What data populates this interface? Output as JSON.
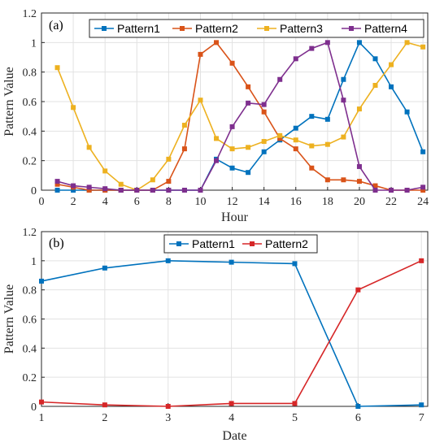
{
  "chart_data": [
    {
      "type": "line",
      "panel_label": "(a)",
      "title": "",
      "xlabel": "Hour",
      "ylabel": "Pattern Value",
      "xlim": [
        0,
        24.3
      ],
      "ylim": [
        0,
        1.2
      ],
      "xticks": [
        "0",
        "2",
        "4",
        "6",
        "8",
        "10",
        "12",
        "14",
        "16",
        "18",
        "20",
        "22",
        "24"
      ],
      "yticks": [
        "0",
        "0.2",
        "0.4",
        "0.6",
        "0.8",
        "1",
        "1.2"
      ],
      "grid": true,
      "legend": "top, horizontal",
      "x": [
        1,
        2,
        3,
        4,
        5,
        6,
        7,
        8,
        9,
        10,
        11,
        12,
        13,
        14,
        15,
        16,
        17,
        18,
        19,
        20,
        21,
        22,
        23,
        24
      ],
      "series": [
        {
          "name": "Pattern1",
          "color": "#0072BD",
          "values": [
            0,
            0,
            0,
            0,
            0,
            0,
            0,
            0,
            0,
            0,
            0.21,
            0.15,
            0.12,
            0.26,
            0.34,
            0.42,
            0.5,
            0.48,
            0.75,
            1.0,
            0.89,
            0.7,
            0.53,
            0.26
          ]
        },
        {
          "name": "Pattern2",
          "color": "#D95319",
          "values": [
            0.04,
            0.02,
            0,
            0,
            0,
            0,
            0,
            0.06,
            0.28,
            0.92,
            1.0,
            0.86,
            0.7,
            0.53,
            0.35,
            0.28,
            0.15,
            0.07,
            0.07,
            0.06,
            0.03,
            0,
            0,
            0
          ]
        },
        {
          "name": "Pattern3",
          "color": "#EDB120",
          "values": [
            0.83,
            0.56,
            0.29,
            0.13,
            0.04,
            0,
            0.07,
            0.21,
            0.44,
            0.61,
            0.35,
            0.28,
            0.29,
            0.33,
            0.37,
            0.34,
            0.3,
            0.31,
            0.36,
            0.55,
            0.71,
            0.85,
            1.0,
            0.97
          ]
        },
        {
          "name": "Pattern4",
          "color": "#7E2F8E",
          "values": [
            0.06,
            0.03,
            0.02,
            0.01,
            0,
            0,
            0,
            0,
            0,
            0,
            0.2,
            0.43,
            0.59,
            0.58,
            0.75,
            0.89,
            0.96,
            1.0,
            0.61,
            0.16,
            0,
            0,
            0,
            0.02
          ]
        }
      ]
    },
    {
      "type": "line",
      "panel_label": "(b)",
      "title": "",
      "xlabel": "Date",
      "ylabel": "Pattern Value",
      "xlim": [
        1,
        7.1
      ],
      "ylim": [
        0,
        1.2
      ],
      "xticks": [
        "1",
        "2",
        "3",
        "4",
        "5",
        "6",
        "7"
      ],
      "yticks": [
        "0",
        "0.2",
        "0.4",
        "0.6",
        "0.8",
        "1",
        "1.2"
      ],
      "grid": true,
      "legend": "top, horizontal",
      "x": [
        1,
        2,
        3,
        4,
        5,
        6,
        7
      ],
      "series": [
        {
          "name": "Pattern1",
          "color": "#0072BD",
          "values": [
            0.86,
            0.95,
            1.0,
            0.99,
            0.98,
            0,
            0.01
          ]
        },
        {
          "name": "Pattern2",
          "color": "#D62728",
          "values": [
            0.03,
            0.01,
            0,
            0.02,
            0.02,
            0.8,
            1.0
          ]
        }
      ]
    }
  ]
}
